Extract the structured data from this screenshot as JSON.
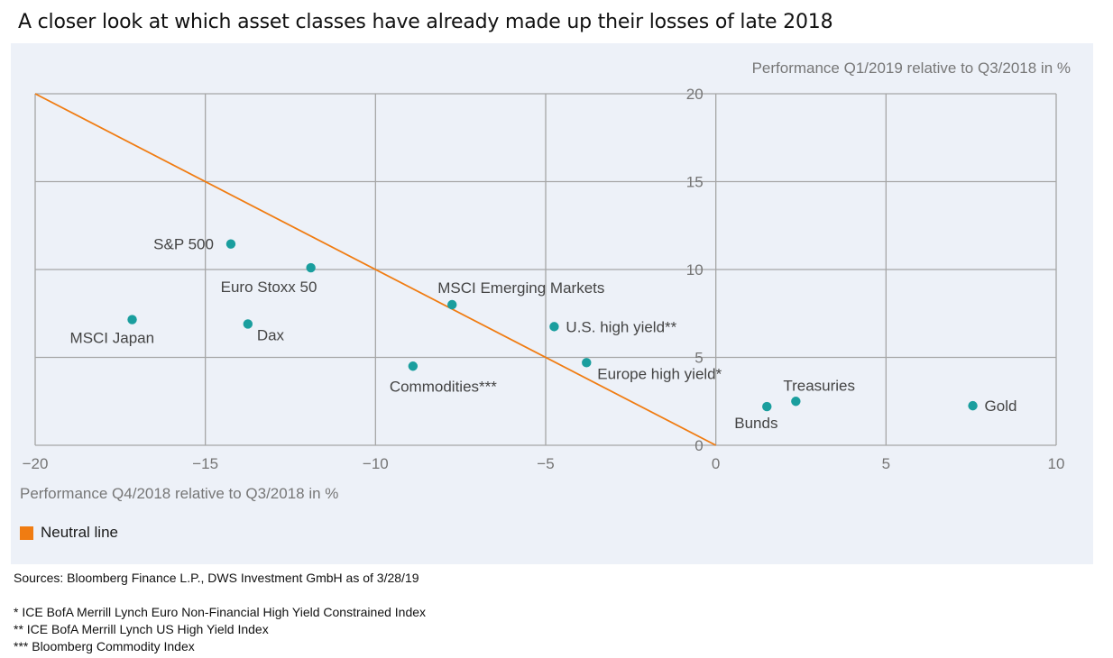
{
  "title": "A closer look at which asset classes have already made up their losses of late 2018",
  "colors": {
    "panel_bg": "#edf1f8",
    "grid": "#a6a6a6",
    "point": "#1a9e9e",
    "neutral_line": "#f07c12",
    "tick_text": "#757575",
    "label_text": "#444444"
  },
  "chart_data": {
    "type": "scatter",
    "title": "A closer look at which asset classes have already made up their losses of late 2018",
    "xlabel": "Performance Q4/2018 relative to Q3/2018 in %",
    "ylabel": "Performance Q1/2019 relative to Q3/2018 in %",
    "xlim": [
      -20,
      10
    ],
    "ylim": [
      0,
      20
    ],
    "xticks": [
      -20,
      -15,
      -10,
      -5,
      0,
      5,
      10
    ],
    "xtick_labels": [
      "−20",
      "−15",
      "−10",
      "−5",
      "0",
      "5",
      "10"
    ],
    "yticks": [
      0,
      5,
      10,
      15,
      20
    ],
    "ytick_labels": [
      "0",
      "5",
      "10",
      "15",
      "20"
    ],
    "grid": true,
    "points": [
      {
        "name": "S&P 500",
        "x": -14.25,
        "y": 11.45,
        "label_pos": "left"
      },
      {
        "name": "Euro Stoxx 50",
        "x": -11.9,
        "y": 10.1,
        "label_pos": "below-left"
      },
      {
        "name": "MSCI Japan",
        "x": -17.15,
        "y": 7.15,
        "label_pos": "below-left"
      },
      {
        "name": "Dax",
        "x": -13.75,
        "y": 6.9,
        "label_pos": "below-right"
      },
      {
        "name": "MSCI Emerging Markets",
        "x": -7.75,
        "y": 8.0,
        "label_pos": "above-right"
      },
      {
        "name": "Commodities***",
        "x": -8.9,
        "y": 4.5,
        "label_pos": "below-left"
      },
      {
        "name": "U.S. high yield**",
        "x": -4.75,
        "y": 6.75,
        "label_pos": "right"
      },
      {
        "name": "Europe high yield*",
        "x": -3.8,
        "y": 4.7,
        "label_pos": "below-right"
      },
      {
        "name": "Bunds",
        "x": 1.5,
        "y": 2.2,
        "label_pos": "below-left"
      },
      {
        "name": "Treasuries",
        "x": 2.35,
        "y": 2.5,
        "label_pos": "above-left"
      },
      {
        "name": "Gold",
        "x": 7.55,
        "y": 2.25,
        "label_pos": "right"
      }
    ],
    "series": [
      {
        "name": "Neutral line",
        "type": "line",
        "x": [
          -20,
          0
        ],
        "y": [
          20,
          0
        ]
      }
    ],
    "legend": {
      "entries": [
        "Neutral line"
      ],
      "placement": "bottom-left"
    }
  },
  "legend": {
    "neutral_line_label": "Neutral line"
  },
  "notes": {
    "sources": "Sources: Bloomberg Finance L.P., DWS Investment GmbH as of 3/28/19",
    "footnote_1": "* ICE BofA Merrill Lynch Euro Non-Financial High Yield Constrained Index",
    "footnote_2": "** ICE BofA Merrill Lynch US High Yield Index",
    "footnote_3": "*** Bloomberg Commodity Index"
  }
}
